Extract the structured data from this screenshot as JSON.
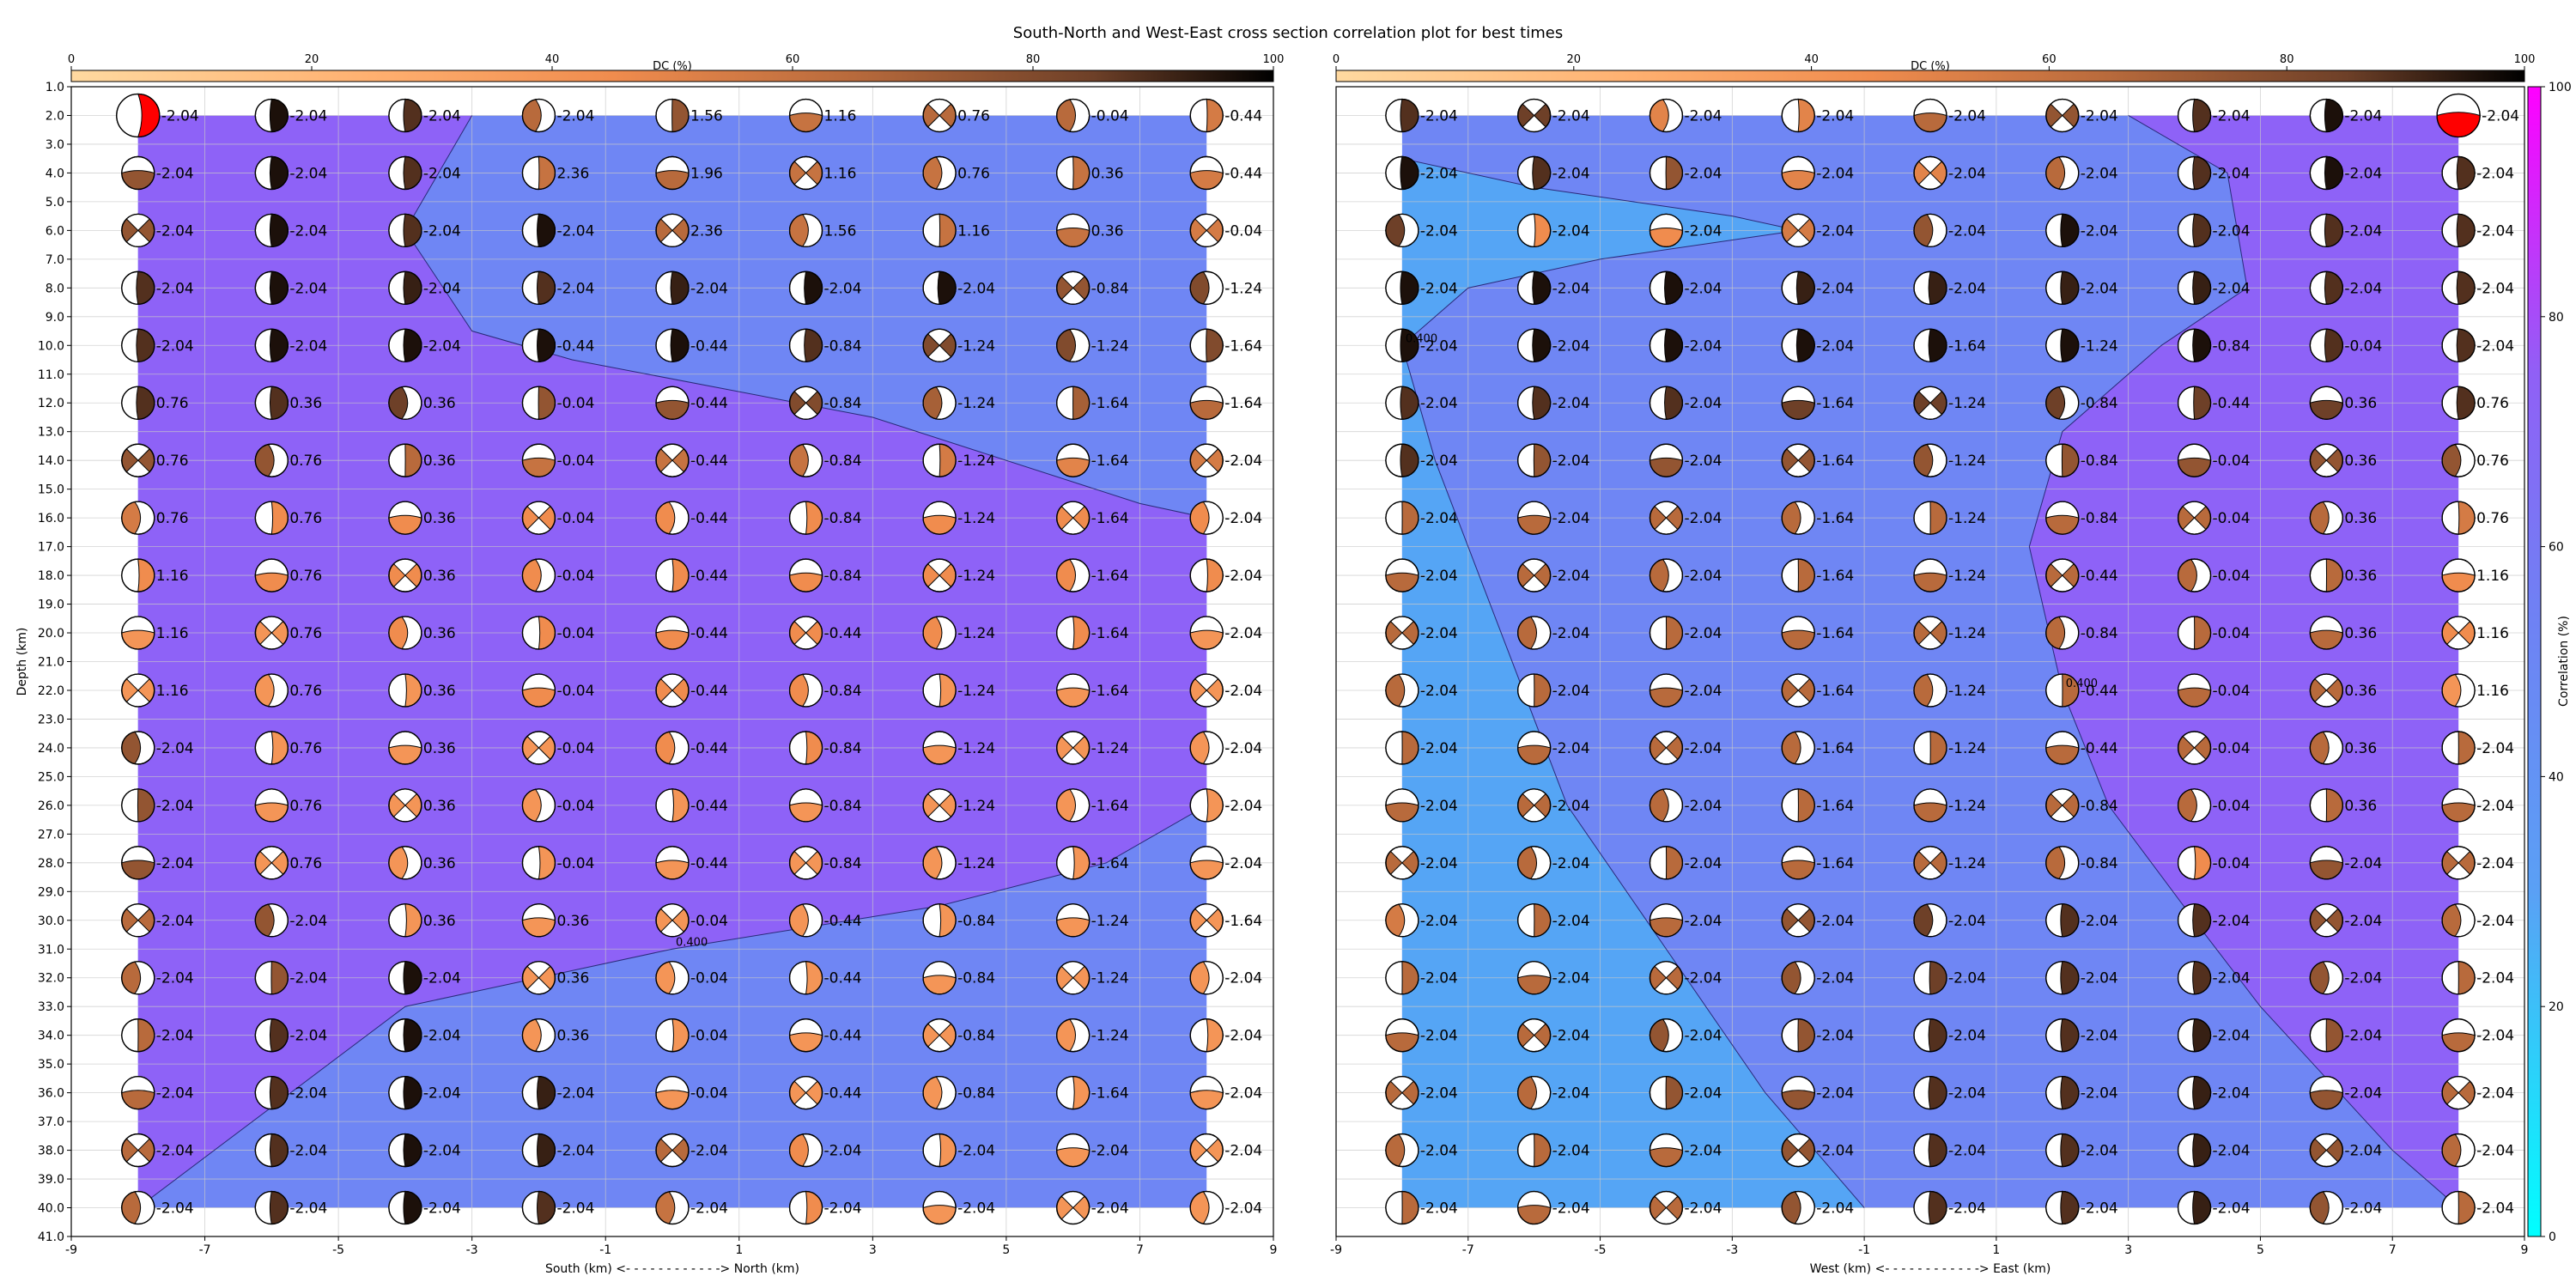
{
  "title": "South-North and West-East cross section correlation plot for best times",
  "colors": {
    "high_corr": "#8e62f7",
    "mid_corr": "#6f86f4",
    "low_corr": "#55a5f5",
    "contour_line": "#2a2a7a",
    "grid": "#c8c8c8",
    "best_solution_fill": "#ff0000",
    "dc_colormap": [
      "#ffd9a0",
      "#ffb070",
      "#f08c4e",
      "#b86a3c",
      "#6e4028",
      "#000000"
    ],
    "correlation_colormap": [
      "#00ffff",
      "#6e8cf5",
      "#8e62f7",
      "#ff00ff"
    ]
  },
  "dc_colorbar": {
    "label": "DC (%)",
    "ticks": [
      "0",
      "20",
      "40",
      "60",
      "80",
      "100"
    ],
    "range": [
      0,
      100
    ]
  },
  "correlation_colorbar": {
    "label": "Correlation (%)",
    "ticks": [
      "0",
      "20",
      "40",
      "60",
      "80",
      "100"
    ],
    "range": [
      0,
      100
    ]
  },
  "chart_data": [
    {
      "type": "heatmap",
      "subtype": "cross-section with beachballs",
      "xlabel": "South (km) <- - - - - - - - - - - -> North (km)",
      "ylabel": "Depth (km)",
      "xlim": [
        -9,
        9
      ],
      "ylim": [
        41,
        1
      ],
      "y_inverted": true,
      "x_ticks": [
        "-9",
        "-7",
        "-5",
        "-3",
        "-1",
        "1",
        "3",
        "5",
        "7",
        "9"
      ],
      "y_ticks": [
        "1.0",
        "2.0",
        "3.0",
        "4.0",
        "5.0",
        "6.0",
        "7.0",
        "8.0",
        "9.0",
        "10.0",
        "11.0",
        "12.0",
        "13.0",
        "14.0",
        "15.0",
        "16.0",
        "17.0",
        "18.0",
        "19.0",
        "20.0",
        "21.0",
        "22.0",
        "23.0",
        "24.0",
        "25.0",
        "26.0",
        "27.0",
        "28.0",
        "29.0",
        "30.0",
        "31.0",
        "32.0",
        "33.0",
        "34.0",
        "35.0",
        "36.0",
        "37.0",
        "38.0",
        "39.0",
        "40.0",
        "41.0"
      ],
      "grid": true,
      "x_positions": [
        -8,
        -6,
        -4,
        -2,
        0,
        2,
        4,
        6,
        8
      ],
      "depths": [
        2,
        4,
        6,
        8,
        10,
        12,
        14,
        16,
        18,
        20,
        22,
        24,
        26,
        28,
        30,
        32,
        34,
        36,
        38,
        40
      ],
      "time_labels": [
        [
          "-2.04",
          "-2.04",
          "-2.04",
          "-2.04",
          "1.56",
          "1.16",
          "0.76",
          "-0.04",
          "-0.44"
        ],
        [
          "-2.04",
          "-2.04",
          "-2.04",
          "2.36",
          "1.96",
          "1.16",
          "0.76",
          "0.36",
          "-0.44"
        ],
        [
          "-2.04",
          "-2.04",
          "-2.04",
          "-2.04",
          "2.36",
          "1.56",
          "1.16",
          "0.36",
          "-0.04"
        ],
        [
          "-2.04",
          "-2.04",
          "-2.04",
          "-2.04",
          "-2.04",
          "-2.04",
          "-2.04",
          "-0.84",
          "-1.24"
        ],
        [
          "-2.04",
          "-2.04",
          "-2.04",
          "-0.44",
          "-0.44",
          "-0.84",
          "-1.24",
          "-1.24",
          "-1.64"
        ],
        [
          "0.76",
          "0.36",
          "0.36",
          "-0.04",
          "-0.44",
          "-0.84",
          "-1.24",
          "-1.64",
          "-1.64"
        ],
        [
          "0.76",
          "0.76",
          "0.36",
          "-0.04",
          "-0.44",
          "-0.84",
          "-1.24",
          "-1.64",
          "-2.04"
        ],
        [
          "0.76",
          "0.76",
          "0.36",
          "-0.04",
          "-0.44",
          "-0.84",
          "-1.24",
          "-1.64",
          "-2.04"
        ],
        [
          "1.16",
          "0.76",
          "0.36",
          "-0.04",
          "-0.44",
          "-0.84",
          "-1.24",
          "-1.64",
          "-2.04"
        ],
        [
          "1.16",
          "0.76",
          "0.36",
          "-0.04",
          "-0.44",
          "-0.44",
          "-1.24",
          "-1.64",
          "-2.04"
        ],
        [
          "1.16",
          "0.76",
          "0.36",
          "-0.04",
          "-0.44",
          "-0.84",
          "-1.24",
          "-1.64",
          "-2.04"
        ],
        [
          "-2.04",
          "0.76",
          "0.36",
          "-0.04",
          "-0.44",
          "-0.84",
          "-1.24",
          "-1.24",
          "-2.04"
        ],
        [
          "-2.04",
          "0.76",
          "0.36",
          "-0.04",
          "-0.44",
          "-0.84",
          "-1.24",
          "-1.64",
          "-2.04"
        ],
        [
          "-2.04",
          "0.76",
          "0.36",
          "-0.04",
          "-0.44",
          "-0.84",
          "-1.24",
          "-1.64",
          "-2.04"
        ],
        [
          "-2.04",
          "-2.04",
          "0.36",
          "0.36",
          "-0.04",
          "-0.44",
          "-0.84",
          "-1.24",
          "-1.64"
        ],
        [
          "-2.04",
          "-2.04",
          "-2.04",
          "0.36",
          "-0.04",
          "-0.44",
          "-0.84",
          "-1.24",
          "-2.04"
        ],
        [
          "-2.04",
          "-2.04",
          "-2.04",
          "0.36",
          "-0.04",
          "-0.44",
          "-0.84",
          "-1.24",
          "-2.04"
        ],
        [
          "-2.04",
          "-2.04",
          "-2.04",
          "-2.04",
          "-0.04",
          "-0.44",
          "-0.84",
          "-1.64",
          "-2.04"
        ],
        [
          "-2.04",
          "-2.04",
          "-2.04",
          "-2.04",
          "-2.04",
          "-2.04",
          "-2.04",
          "-2.04",
          "-2.04"
        ],
        [
          "-2.04",
          "-2.04",
          "-2.04",
          "-2.04",
          "-2.04",
          "-2.04",
          "-2.04",
          "-2.04",
          "-2.04"
        ]
      ],
      "dc_percent": [
        [
          0,
          95,
          85,
          60,
          70,
          55,
          60,
          60,
          50
        ],
        [
          70,
          95,
          85,
          55,
          60,
          55,
          55,
          55,
          50
        ],
        [
          70,
          95,
          85,
          95,
          60,
          55,
          55,
          55,
          50
        ],
        [
          85,
          95,
          90,
          85,
          90,
          95,
          95,
          70,
          75
        ],
        [
          85,
          95,
          95,
          95,
          95,
          85,
          75,
          75,
          75
        ],
        [
          85,
          85,
          80,
          70,
          70,
          75,
          65,
          65,
          60
        ],
        [
          70,
          70,
          60,
          55,
          55,
          55,
          50,
          45,
          50
        ],
        [
          50,
          40,
          40,
          40,
          40,
          40,
          40,
          40,
          40
        ],
        [
          40,
          40,
          40,
          40,
          40,
          40,
          40,
          40,
          40
        ],
        [
          35,
          35,
          40,
          40,
          40,
          40,
          40,
          40,
          35
        ],
        [
          35,
          35,
          35,
          40,
          40,
          40,
          35,
          35,
          35
        ],
        [
          70,
          35,
          35,
          35,
          40,
          40,
          35,
          35,
          35
        ],
        [
          70,
          35,
          35,
          35,
          35,
          35,
          35,
          35,
          35
        ],
        [
          70,
          35,
          35,
          35,
          35,
          35,
          35,
          35,
          35
        ],
        [
          60,
          70,
          35,
          35,
          35,
          35,
          35,
          35,
          35
        ],
        [
          60,
          70,
          95,
          35,
          35,
          35,
          35,
          35,
          35
        ],
        [
          60,
          85,
          95,
          35,
          35,
          35,
          35,
          35,
          35
        ],
        [
          60,
          85,
          95,
          90,
          35,
          35,
          35,
          35,
          35
        ],
        [
          60,
          85,
          95,
          90,
          60,
          40,
          35,
          35,
          35
        ],
        [
          60,
          85,
          95,
          85,
          55,
          40,
          35,
          35,
          35
        ]
      ],
      "best_solution": {
        "x": -8,
        "depth": 2,
        "time": "-2.04"
      },
      "contours": [
        {
          "label": "",
          "points": [
            [
              -3,
              2
            ],
            [
              -4,
              6
            ],
            [
              -3,
              9.5
            ],
            [
              -1.5,
              10.5
            ],
            [
              3,
              12.5
            ],
            [
              7,
              15.5
            ],
            [
              8,
              16
            ]
          ]
        },
        {
          "label": "0.400",
          "points": [
            [
              8,
              26
            ],
            [
              6.5,
              28
            ],
            [
              4,
              29.5
            ],
            [
              0,
              31
            ],
            [
              -3,
              32.5
            ],
            [
              -4,
              33
            ],
            [
              -8,
              40
            ]
          ]
        }
      ]
    },
    {
      "type": "heatmap",
      "subtype": "cross-section with beachballs",
      "xlabel": "West (km) <- - - - - - - - - - - -> East (km)",
      "ylabel": "",
      "xlim": [
        -9,
        9
      ],
      "ylim": [
        41,
        1
      ],
      "y_inverted": true,
      "x_ticks": [
        "-9",
        "-7",
        "-5",
        "-3",
        "-1",
        "1",
        "3",
        "5",
        "7",
        "9"
      ],
      "grid": true,
      "x_positions": [
        -8,
        -6,
        -4,
        -2,
        0,
        2,
        4,
        6,
        8
      ],
      "depths": [
        2,
        4,
        6,
        8,
        10,
        12,
        14,
        16,
        18,
        20,
        22,
        24,
        26,
        28,
        30,
        32,
        34,
        36,
        38,
        40
      ],
      "time_labels": [
        [
          "-2.04",
          "-2.04",
          "-2.04",
          "-2.04",
          "-2.04",
          "-2.04",
          "-2.04",
          "-2.04",
          "-2.04"
        ],
        [
          "-2.04",
          "-2.04",
          "-2.04",
          "-2.04",
          "-2.04",
          "-2.04",
          "-2.04",
          "-2.04",
          "-2.04"
        ],
        [
          "-2.04",
          "-2.04",
          "-2.04",
          "-2.04",
          "-2.04",
          "-2.04",
          "-2.04",
          "-2.04",
          "-2.04"
        ],
        [
          "-2.04",
          "-2.04",
          "-2.04",
          "-2.04",
          "-2.04",
          "-2.04",
          "-2.04",
          "-2.04",
          "-2.04"
        ],
        [
          "-2.04",
          "-2.04",
          "-2.04",
          "-2.04",
          "-1.64",
          "-1.24",
          "-0.84",
          "-0.04",
          "-2.04"
        ],
        [
          "-2.04",
          "-2.04",
          "-2.04",
          "-1.64",
          "-1.24",
          "-0.84",
          "-0.44",
          "0.36",
          "0.76"
        ],
        [
          "-2.04",
          "-2.04",
          "-2.04",
          "-1.64",
          "-1.24",
          "-0.84",
          "-0.04",
          "0.36",
          "0.76"
        ],
        [
          "-2.04",
          "-2.04",
          "-2.04",
          "-1.64",
          "-1.24",
          "-0.84",
          "-0.04",
          "0.36",
          "0.76"
        ],
        [
          "-2.04",
          "-2.04",
          "-2.04",
          "-1.64",
          "-1.24",
          "-0.44",
          "-0.04",
          "0.36",
          "1.16"
        ],
        [
          "-2.04",
          "-2.04",
          "-2.04",
          "-1.64",
          "-1.24",
          "-0.84",
          "-0.04",
          "0.36",
          "1.16"
        ],
        [
          "-2.04",
          "-2.04",
          "-2.04",
          "-1.64",
          "-1.24",
          "-0.44",
          "-0.04",
          "0.36",
          "1.16"
        ],
        [
          "-2.04",
          "-2.04",
          "-2.04",
          "-1.64",
          "-1.24",
          "-0.44",
          "-0.04",
          "0.36",
          "-2.04"
        ],
        [
          "-2.04",
          "-2.04",
          "-2.04",
          "-1.64",
          "-1.24",
          "-0.84",
          "-0.04",
          "0.36",
          "-2.04"
        ],
        [
          "-2.04",
          "-2.04",
          "-2.04",
          "-1.64",
          "-1.24",
          "-0.84",
          "-0.04",
          "-2.04",
          "-2.04"
        ],
        [
          "-2.04",
          "-2.04",
          "-2.04",
          "-2.04",
          "-2.04",
          "-2.04",
          "-2.04",
          "-2.04",
          "-2.04"
        ],
        [
          "-2.04",
          "-2.04",
          "-2.04",
          "-2.04",
          "-2.04",
          "-2.04",
          "-2.04",
          "-2.04",
          "-2.04"
        ],
        [
          "-2.04",
          "-2.04",
          "-2.04",
          "-2.04",
          "-2.04",
          "-2.04",
          "-2.04",
          "-2.04",
          "-2.04"
        ],
        [
          "-2.04",
          "-2.04",
          "-2.04",
          "-2.04",
          "-2.04",
          "-2.04",
          "-2.04",
          "-2.04",
          "-2.04"
        ],
        [
          "-2.04",
          "-2.04",
          "-2.04",
          "-2.04",
          "-2.04",
          "-2.04",
          "-2.04",
          "-2.04",
          "-2.04"
        ],
        [
          "-2.04",
          "-2.04",
          "-2.04",
          "-2.04",
          "-2.04",
          "-2.04",
          "-2.04",
          "-2.04",
          "-2.04"
        ]
      ],
      "dc_percent": [
        [
          85,
          80,
          45,
          45,
          60,
          70,
          85,
          95,
          0
        ],
        [
          95,
          85,
          70,
          45,
          45,
          60,
          85,
          95,
          85
        ],
        [
          80,
          40,
          40,
          50,
          70,
          95,
          85,
          85,
          85
        ],
        [
          95,
          95,
          95,
          90,
          90,
          90,
          90,
          85,
          85
        ],
        [
          95,
          95,
          95,
          95,
          95,
          95,
          95,
          85,
          85
        ],
        [
          85,
          85,
          85,
          80,
          80,
          80,
          80,
          80,
          85
        ],
        [
          85,
          70,
          70,
          70,
          70,
          70,
          70,
          70,
          70
        ],
        [
          60,
          60,
          60,
          60,
          60,
          60,
          60,
          60,
          50
        ],
        [
          60,
          60,
          60,
          60,
          60,
          60,
          60,
          60,
          40
        ],
        [
          60,
          60,
          60,
          60,
          60,
          60,
          60,
          60,
          40
        ],
        [
          60,
          60,
          60,
          60,
          60,
          60,
          60,
          60,
          35
        ],
        [
          60,
          60,
          60,
          60,
          60,
          60,
          60,
          60,
          60
        ],
        [
          60,
          60,
          60,
          60,
          60,
          60,
          60,
          60,
          60
        ],
        [
          60,
          60,
          60,
          60,
          60,
          60,
          40,
          70,
          60
        ],
        [
          50,
          60,
          60,
          70,
          80,
          85,
          85,
          70,
          60
        ],
        [
          60,
          60,
          60,
          70,
          80,
          85,
          85,
          70,
          60
        ],
        [
          60,
          60,
          70,
          70,
          85,
          85,
          90,
          70,
          60
        ],
        [
          60,
          60,
          70,
          70,
          85,
          85,
          90,
          70,
          60
        ],
        [
          60,
          60,
          60,
          70,
          85,
          85,
          90,
          70,
          60
        ],
        [
          60,
          60,
          60,
          70,
          85,
          85,
          90,
          70,
          60
        ]
      ],
      "best_solution": {
        "x": 8,
        "depth": 2,
        "time": "-2.04"
      },
      "contours": [
        {
          "label": "0.400",
          "points": [
            [
              -8,
              3.5
            ],
            [
              -6,
              4.5
            ],
            [
              -3,
              5.5
            ],
            [
              -2,
              6
            ],
            [
              -5,
              7
            ],
            [
              -7,
              8
            ],
            [
              -8,
              10
            ],
            [
              -7.5,
              14
            ],
            [
              -6.5,
              20
            ],
            [
              -5.5,
              26
            ],
            [
              -4,
              31
            ],
            [
              -2.5,
              36
            ],
            [
              -1,
              40
            ]
          ]
        },
        {
          "label": "0.400",
          "points": [
            [
              3,
              2
            ],
            [
              4.5,
              4
            ],
            [
              4.8,
              8
            ],
            [
              3.5,
              10
            ],
            [
              2,
              13
            ],
            [
              1.5,
              17
            ],
            [
              2,
              22
            ],
            [
              2.7,
              26
            ],
            [
              4,
              30
            ],
            [
              5,
              33
            ],
            [
              7,
              38
            ],
            [
              8,
              40
            ]
          ]
        }
      ]
    }
  ]
}
